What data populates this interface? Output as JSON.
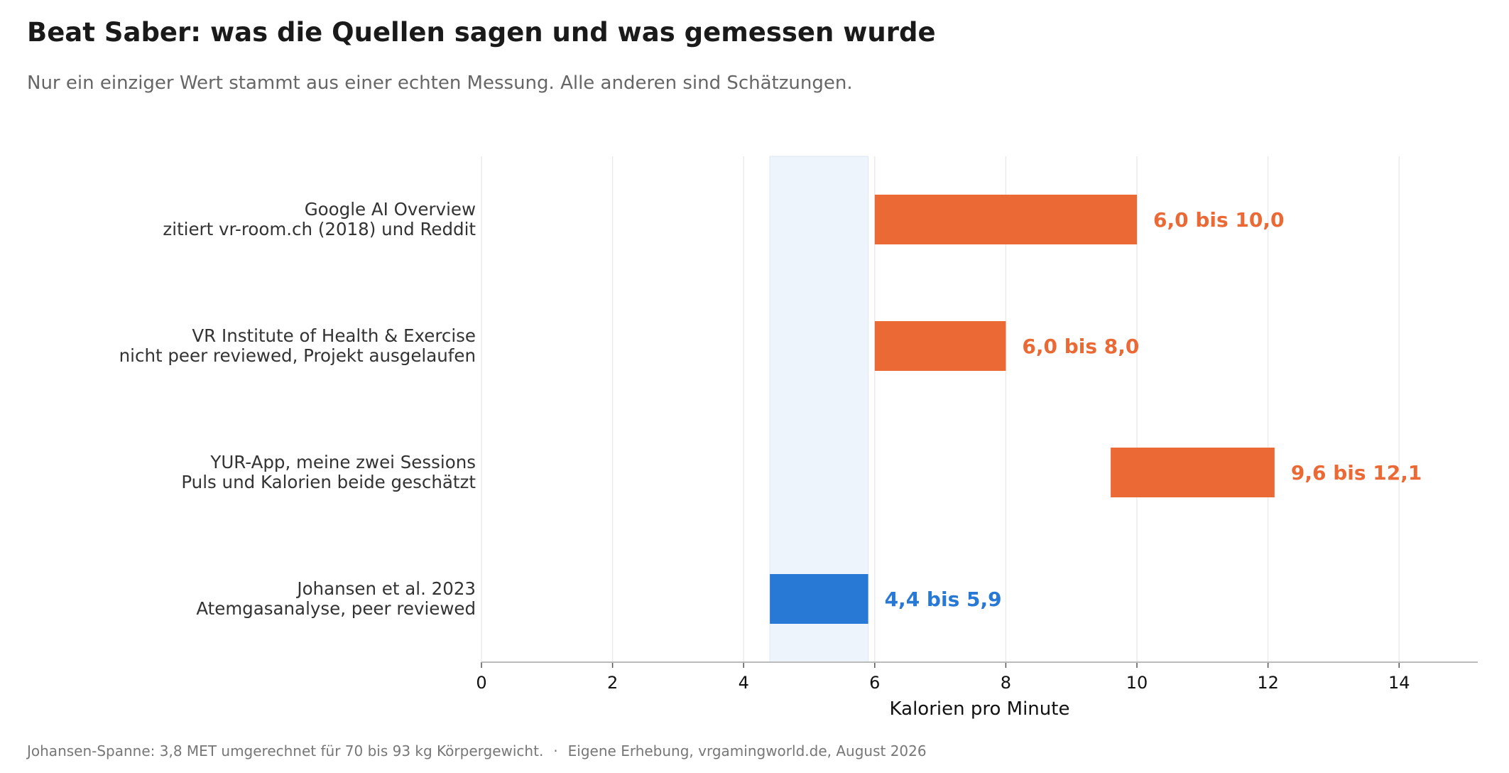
{
  "title": "Beat Saber: was die Quellen sagen und was gemessen wurde",
  "subtitle": "Nur ein einziger Wert stammt aus einer echten Messung. Alle anderen sind Schätzungen.",
  "footnote": {
    "left": "Johansen-Spanne: 3,8 MET umgerechnet für 70 bis 93 kg Körpergewicht.",
    "separator": "·",
    "right": "Eigene Erhebung, vrgamingworld.de, August 2026"
  },
  "colors": {
    "estimate": "#eb6935",
    "measured": "#2878d6",
    "highlight_band": "#edf4fc",
    "gridline": "#ebebeb",
    "axis": "#bbbbbb",
    "label_text": "#333333"
  },
  "chart_data": {
    "type": "bar",
    "orientation": "horizontal",
    "range_bars": true,
    "title": "Beat Saber: was die Quellen sagen und was gemessen wurde",
    "xlabel": "Kalorien pro Minute",
    "ylabel": "",
    "xlim": [
      0,
      15.2
    ],
    "xticks": [
      0,
      2,
      4,
      6,
      8,
      10,
      12,
      14
    ],
    "xtick_labels": [
      "0",
      "2",
      "4",
      "6",
      "8",
      "10",
      "12",
      "14"
    ],
    "grid": "vertical",
    "highlight_band": {
      "from": 4.4,
      "to": 5.9
    },
    "bars": [
      {
        "line1": "Google AI Overview",
        "line2": "zitiert vr-room.ch (2018) und Reddit",
        "start": 6.0,
        "end": 10.0,
        "value_label": "6,0 bis 10,0",
        "kind": "estimate"
      },
      {
        "line1": "VR Institute of Health & Exercise",
        "line2": "nicht peer reviewed, Projekt ausgelaufen",
        "start": 6.0,
        "end": 8.0,
        "value_label": "6,0 bis 8,0",
        "kind": "estimate"
      },
      {
        "line1": "YUR-App, meine zwei Sessions",
        "line2": "Puls und Kalorien beide geschätzt",
        "start": 9.6,
        "end": 12.1,
        "value_label": "9,6 bis 12,1",
        "kind": "estimate"
      },
      {
        "line1": "Johansen et al. 2023",
        "line2": "Atemgasanalyse, peer reviewed",
        "start": 4.4,
        "end": 5.9,
        "value_label": "4,4 bis 5,9",
        "kind": "measured"
      }
    ]
  }
}
